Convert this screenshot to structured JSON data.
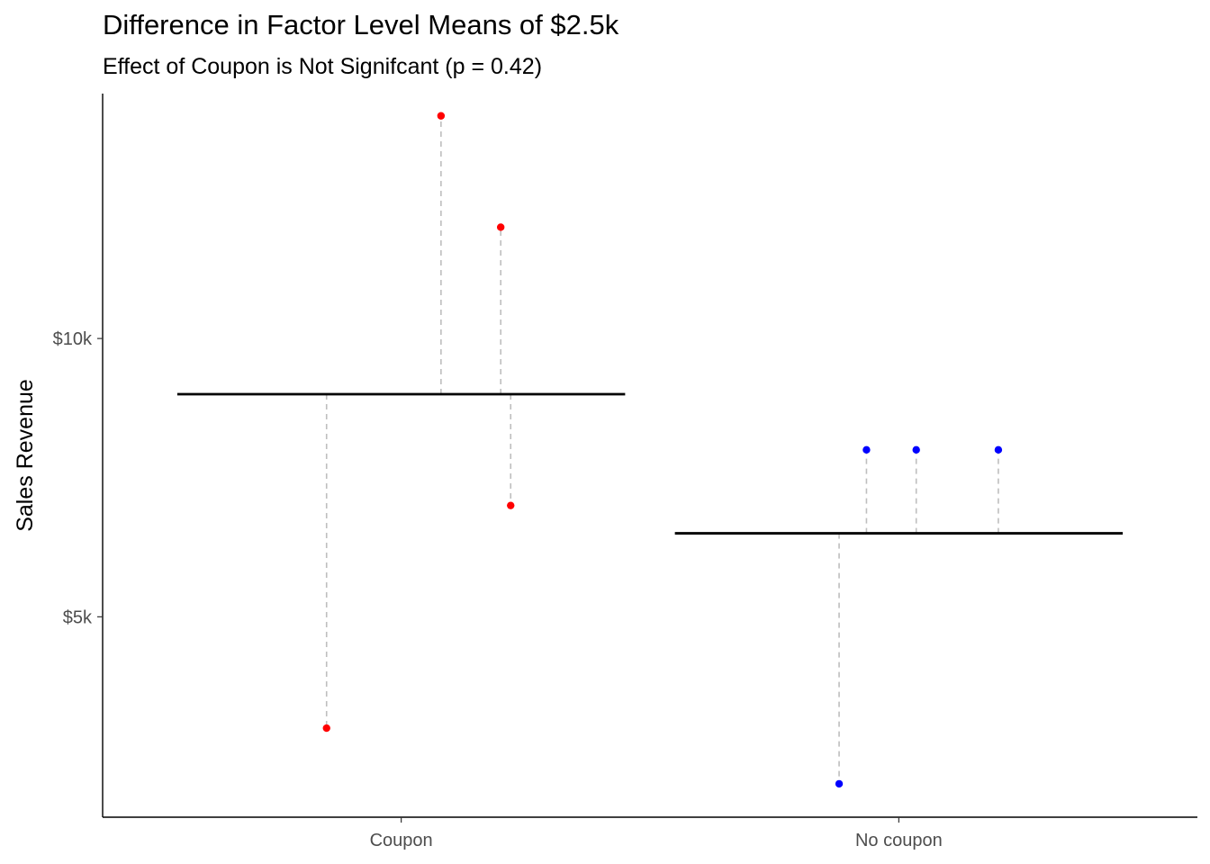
{
  "chart_data": {
    "type": "scatter",
    "title": "Difference in Factor Level Means of $2.5k",
    "subtitle": "Effect of Coupon is Not Signifcant (p = 0.42)",
    "xlabel": "",
    "ylabel": "Sales Revenue",
    "categories": [
      "Coupon",
      "No coupon"
    ],
    "y_ticks": [
      {
        "value": 5000,
        "label": "$5k"
      },
      {
        "value": 10000,
        "label": "$10k"
      }
    ],
    "ylim": [
      1400,
      14400
    ],
    "grid": false,
    "legend": "none",
    "groups": [
      {
        "category": "Coupon",
        "mean": 9000,
        "color": "#ff0000",
        "points": [
          {
            "offset": -0.15,
            "y": 3000
          },
          {
            "offset": 0.08,
            "y": 14000
          },
          {
            "offset": 0.2,
            "y": 12000
          },
          {
            "offset": 0.22,
            "y": 7000
          }
        ]
      },
      {
        "category": "No coupon",
        "mean": 6500,
        "color": "#0000ff",
        "points": [
          {
            "offset": -0.12,
            "y": 2000
          },
          {
            "offset": -0.065,
            "y": 8000
          },
          {
            "offset": 0.035,
            "y": 8000
          },
          {
            "offset": 0.2,
            "y": 8000
          }
        ]
      }
    ],
    "mean_line_color": "#000000",
    "residual_line_color": "#bebebe"
  }
}
